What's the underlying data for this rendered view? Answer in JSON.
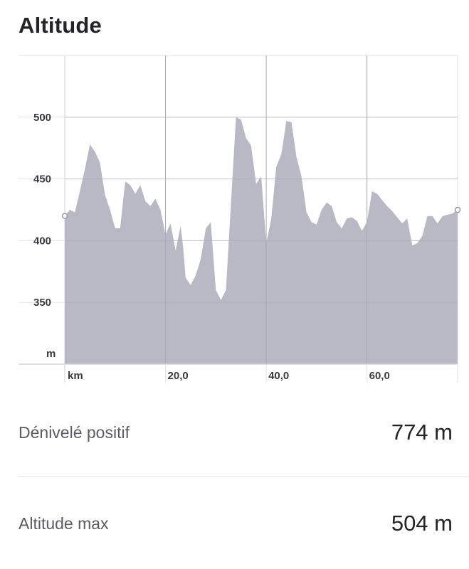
{
  "section": {
    "title": "Altitude"
  },
  "chart_data": {
    "type": "area",
    "title": "",
    "xlabel": "km",
    "ylabel": "m",
    "xlim": [
      0,
      78
    ],
    "ylim": [
      300,
      550
    ],
    "x_ticks": [
      {
        "value": 20,
        "label": "20,0"
      },
      {
        "value": 40,
        "label": "40,0"
      },
      {
        "value": 60,
        "label": "60,0"
      }
    ],
    "y_ticks": [
      {
        "value": 350,
        "label": "350"
      },
      {
        "value": 400,
        "label": "400"
      },
      {
        "value": 450,
        "label": "450"
      },
      {
        "value": 500,
        "label": "500"
      }
    ],
    "grid": true,
    "fill_color": "#b9b9c5",
    "series": [
      {
        "x": [
          0,
          1,
          2,
          3,
          4,
          5,
          6,
          7,
          8,
          9,
          10,
          11,
          12,
          13,
          14,
          15,
          16,
          17,
          18,
          19,
          20,
          21,
          22,
          23,
          23.5,
          24,
          25,
          26,
          27,
          28,
          29,
          30,
          31,
          32,
          33,
          34,
          35,
          36,
          37,
          38,
          39,
          40,
          41,
          42,
          43,
          44,
          45,
          46,
          47,
          48,
          49,
          50,
          51,
          52,
          53,
          54,
          55,
          56,
          57,
          58,
          59,
          60,
          61,
          62,
          63,
          64,
          65,
          66,
          67,
          68,
          69,
          70,
          71,
          72,
          73,
          74,
          75,
          76,
          77,
          78
        ],
        "y": [
          420,
          425,
          423,
          440,
          458,
          478,
          472,
          463,
          437,
          425,
          410,
          410,
          448,
          445,
          438,
          445,
          432,
          428,
          434,
          425,
          405,
          414,
          392,
          412,
          395,
          370,
          364,
          372,
          385,
          410,
          415,
          360,
          352,
          360,
          430,
          500,
          498,
          483,
          477,
          446,
          452,
          398,
          418,
          460,
          470,
          497,
          496,
          468,
          452,
          423,
          415,
          413,
          425,
          431,
          428,
          415,
          410,
          418,
          419,
          416,
          408,
          415,
          440,
          438,
          433,
          428,
          424,
          419,
          414,
          418,
          396,
          398,
          404,
          420,
          420,
          414,
          420,
          421,
          422,
          425
        ]
      }
    ]
  },
  "stats": [
    {
      "label": "Dénivelé positif",
      "value": "774 m"
    },
    {
      "label": "Altitude max",
      "value": "504 m"
    }
  ]
}
